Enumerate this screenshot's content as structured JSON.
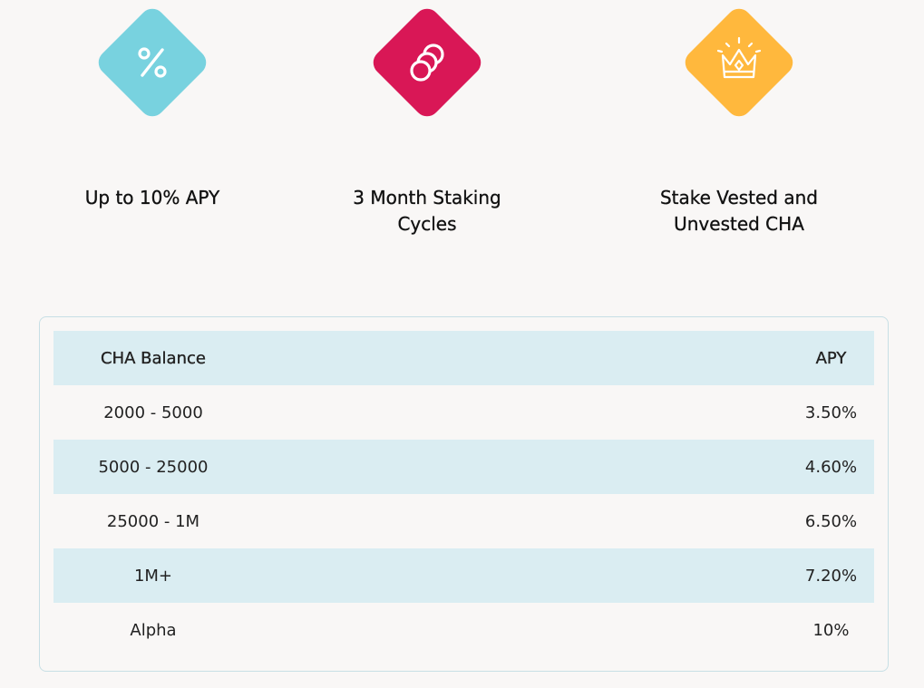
{
  "colors": {
    "teal": "#78d2df",
    "crimson": "#d91756",
    "amber": "#ffb83d",
    "row_shade": "#daedf2",
    "border": "#c7dfe5"
  },
  "features": [
    {
      "icon": "percent-icon",
      "title_line1": "Up to 10% APY",
      "title_line2": ""
    },
    {
      "icon": "coins-icon",
      "title_line1": "3 Month Staking",
      "title_line2": "Cycles"
    },
    {
      "icon": "crown-icon",
      "title_line1": "Stake Vested and",
      "title_line2": "Unvested CHA"
    }
  ],
  "table": {
    "headers": [
      "CHA Balance",
      "APY"
    ],
    "rows": [
      [
        "2000 - 5000",
        "3.50%"
      ],
      [
        "5000 - 25000",
        "4.60%"
      ],
      [
        "25000 - 1M",
        "6.50%"
      ],
      [
        "1M+",
        "7.20%"
      ],
      [
        "Alpha",
        "10%"
      ]
    ]
  }
}
